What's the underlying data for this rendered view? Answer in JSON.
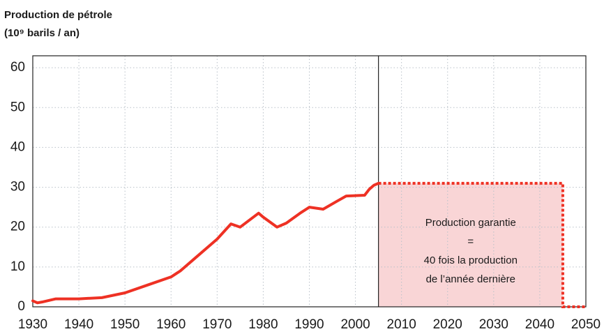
{
  "chart_data": {
    "type": "line",
    "title": "Production de pétrole",
    "y_label": "(10⁹ barils / an)",
    "x": [
      1930,
      1931,
      1932,
      1935,
      1940,
      1945,
      1950,
      1955,
      1960,
      1962,
      1965,
      1970,
      1973,
      1975,
      1979,
      1980,
      1983,
      1985,
      1988,
      1990,
      1993,
      1996,
      1998,
      2002,
      2003,
      2004,
      2005
    ],
    "series": [
      {
        "name": "Production",
        "color": "#ee3124",
        "values": [
          1.5,
          1,
          1.2,
          2,
          2,
          2.3,
          3.5,
          5.5,
          7.5,
          9,
          12,
          17,
          20.8,
          20,
          23.5,
          22.5,
          20,
          21,
          23.5,
          25,
          24.5,
          26.5,
          27.8,
          28,
          29.5,
          30.5,
          31
        ]
      }
    ],
    "projection": {
      "color": "#ee3124",
      "fill": "#f9d5d6",
      "x": [
        2005,
        2045,
        2045,
        2050
      ],
      "values": [
        31,
        31,
        0,
        0
      ]
    },
    "divider_x": 2005,
    "annotation": [
      "Production garantie",
      "=",
      "40 fois la production",
      "de l’année dernière"
    ],
    "xlim": [
      1930,
      2050
    ],
    "ylim": [
      0,
      63
    ],
    "xticks": [
      1930,
      1940,
      1950,
      1960,
      1970,
      1980,
      1990,
      2000,
      2010,
      2020,
      2030,
      2040,
      2050
    ],
    "yticks": [
      0,
      10,
      20,
      30,
      40,
      50,
      60
    ],
    "grid": true
  }
}
